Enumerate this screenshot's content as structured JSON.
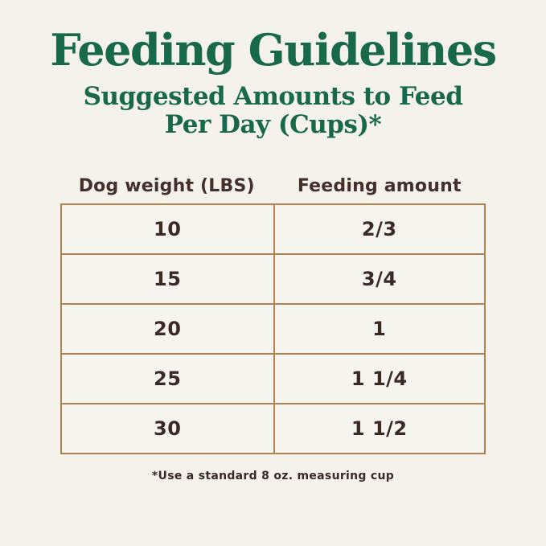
{
  "page": {
    "background_color": "#f4f2eb",
    "accent_green": "#17694a",
    "border_tan": "#ae8351",
    "text_dark": "#3b2a23"
  },
  "header": {
    "title": "Feeding Guidelines",
    "subtitle_line1": "Suggested Amounts to Feed",
    "subtitle_line2": "Per Day (Cups)*"
  },
  "table": {
    "columns": [
      "Dog weight (LBS)",
      "Feeding amount"
    ],
    "rows": [
      {
        "weight": "10",
        "amount": "2/3"
      },
      {
        "weight": "15",
        "amount": "3/4"
      },
      {
        "weight": "20",
        "amount": "1"
      },
      {
        "weight": "25",
        "amount": "1 1/4"
      },
      {
        "weight": "30",
        "amount": "1 1/2"
      }
    ]
  },
  "footnote": "*Use a standard 8 oz. measuring cup",
  "chart_data": {
    "type": "table",
    "title": "Feeding Guidelines",
    "subtitle": "Suggested Amounts to Feed Per Day (Cups)*",
    "columns": [
      "Dog weight (LBS)",
      "Feeding amount"
    ],
    "rows": [
      [
        "10",
        "2/3"
      ],
      [
        "15",
        "3/4"
      ],
      [
        "20",
        "1"
      ],
      [
        "25",
        "1 1/4"
      ],
      [
        "30",
        "1 1/2"
      ]
    ],
    "footnote": "*Use a standard 8 oz. measuring cup",
    "layout": "two-column bordered table, centered, cream background, green serif headings"
  }
}
